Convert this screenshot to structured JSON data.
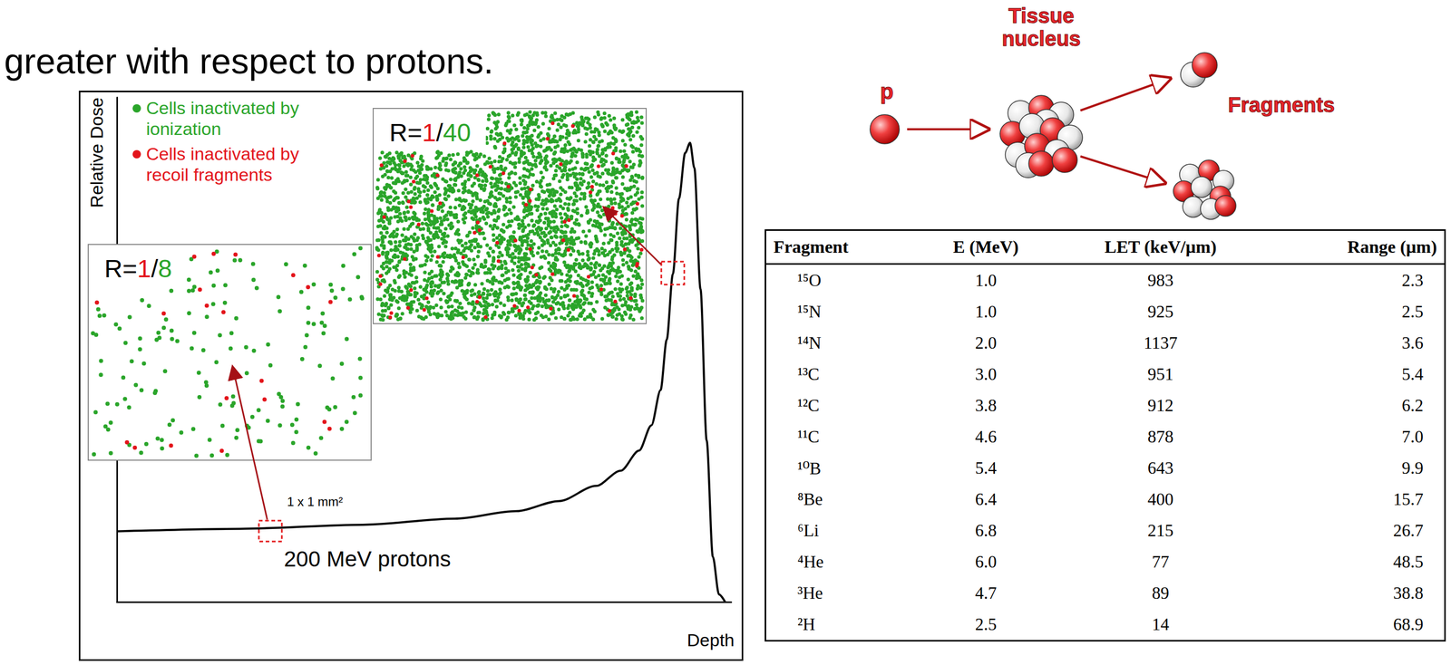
{
  "header": {
    "text": "greater with respect to protons."
  },
  "chart_data": {
    "type": "line",
    "x_label": "Depth",
    "y_label": "Relative Dose",
    "annotation": "200 MeV protons",
    "x": [
      0,
      20,
      40,
      55,
      65,
      72,
      78,
      82,
      85,
      87,
      88.5,
      89.5,
      90.5,
      91.5,
      92.5,
      93.3,
      94,
      95,
      96,
      97,
      98,
      99
    ],
    "values": [
      14,
      14.5,
      15.3,
      16.5,
      18,
      20,
      23,
      26,
      30,
      35,
      42,
      52,
      65,
      80,
      89,
      91,
      86,
      62,
      32,
      9,
      1.5,
      0
    ],
    "xlim": [
      0,
      100
    ],
    "ylim": [
      0,
      100
    ],
    "tick_labels": false,
    "grid": false,
    "color": "#000000"
  },
  "chart_overlay": {
    "key_items": [
      {
        "text": "Cells inactivated by ionization",
        "color": "#2aa52a"
      },
      {
        "text": "Cells inactivated by recoil fragments",
        "color": "#e3141b"
      }
    ],
    "insets": [
      {
        "prefix": "R=",
        "numerator": "1",
        "slash": "/",
        "denominator": "8"
      },
      {
        "prefix": "R=",
        "numerator": "1",
        "slash": "/",
        "denominator": "40"
      }
    ],
    "box_label": "1 x 1 mm²"
  },
  "diagram": {
    "projectile": "p",
    "target": "Tissue nucleus",
    "products": "Fragments"
  },
  "table": {
    "columns": [
      "Fragment",
      "E (MeV)",
      "LET (keV/µm)",
      "Range (µm)"
    ],
    "rows": [
      [
        "¹⁵O",
        "1.0",
        "983",
        "2.3"
      ],
      [
        "¹⁵N",
        "1.0",
        "925",
        "2.5"
      ],
      [
        "¹⁴N",
        "2.0",
        "1137",
        "3.6"
      ],
      [
        "¹³C",
        "3.0",
        "951",
        "5.4"
      ],
      [
        "¹²C",
        "3.8",
        "912",
        "6.2"
      ],
      [
        "¹¹C",
        "4.6",
        "878",
        "7.0"
      ],
      [
        "¹⁰B",
        "5.4",
        "643",
        "9.9"
      ],
      [
        "⁸Be",
        "6.4",
        "400",
        "15.7"
      ],
      [
        "⁶Li",
        "6.8",
        "215",
        "26.7"
      ],
      [
        "⁴He",
        "6.0",
        "77",
        "48.5"
      ],
      [
        "³He",
        "4.7",
        "89",
        "38.8"
      ],
      [
        "²H",
        "2.5",
        "14",
        "68.9"
      ]
    ]
  }
}
